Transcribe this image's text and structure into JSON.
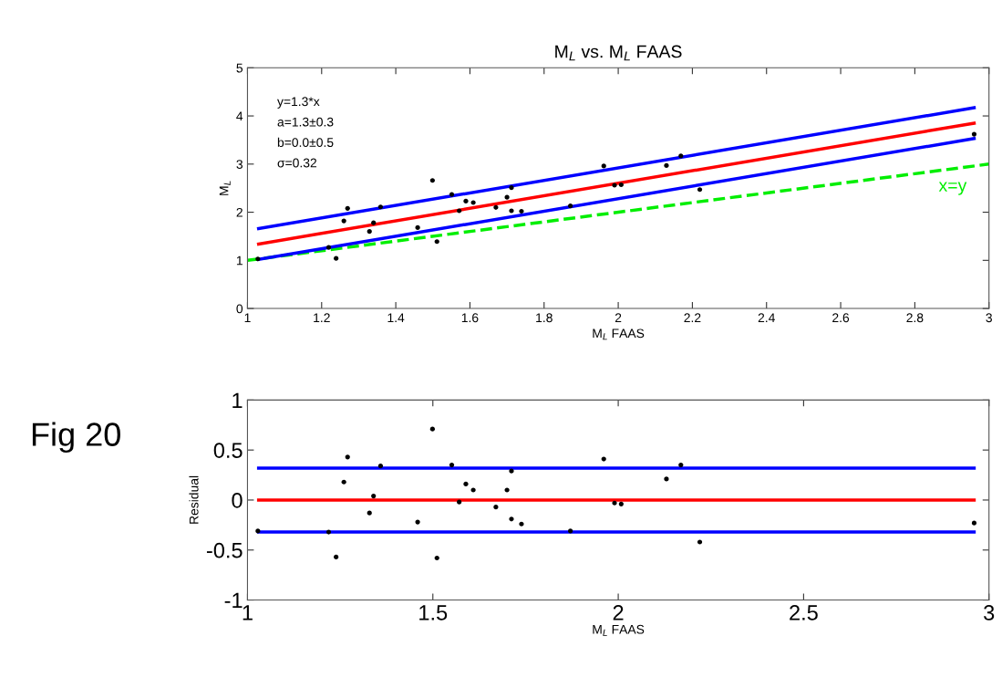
{
  "chart_data": [
    {
      "type": "scatter",
      "title": "M$_{L}$ vs. M$_{L}$ FAAS",
      "xlabel": "M$_{L}$ FAAS",
      "ylabel": "M$_{L}$",
      "xlim": [
        1,
        3
      ],
      "ylim": [
        0,
        5
      ],
      "xticks": [
        1,
        1.2,
        1.4,
        1.6,
        1.8,
        2,
        2.2,
        2.4,
        2.6,
        2.8,
        3
      ],
      "yticks": [
        0,
        1,
        2,
        3,
        4,
        5
      ],
      "annotations": [
        "y=1.3*x",
        "a=1.3±0.3",
        "b=0.0±0.5",
        "σ=0.32"
      ],
      "series": [
        {
          "type": "line",
          "name": "x=y",
          "color": "#00ee00",
          "line_style": "dashed",
          "x": [
            1,
            3
          ],
          "values": [
            1,
            3
          ]
        },
        {
          "type": "line",
          "color": "#0000ff",
          "line_style": "solid",
          "x": [
            1.03,
            2.96
          ],
          "values": [
            1.66,
            4.17
          ]
        },
        {
          "type": "line",
          "color": "#ff0000",
          "line_style": "solid",
          "x": [
            1.03,
            2.96
          ],
          "values": [
            1.34,
            3.85
          ]
        },
        {
          "type": "line",
          "color": "#0000ff",
          "line_style": "solid",
          "x": [
            1.03,
            2.96
          ],
          "values": [
            1.02,
            3.53
          ]
        },
        {
          "marker": "circle",
          "color": "#000000",
          "x": [
            1.028,
            1.219,
            1.239,
            1.26,
            1.27,
            1.329,
            1.34,
            1.359,
            1.459,
            1.499,
            1.511,
            1.551,
            1.571,
            1.589,
            1.609,
            1.67,
            1.7,
            1.712,
            1.712,
            1.739,
            1.871,
            1.961,
            1.99,
            2.008,
            2.13,
            2.169,
            2.22,
            2.96
          ],
          "values": [
            1.03,
            1.27,
            1.04,
            1.82,
            2.08,
            1.6,
            1.78,
            2.11,
            1.68,
            2.66,
            1.39,
            2.37,
            2.03,
            2.23,
            2.2,
            2.1,
            2.31,
            2.51,
            2.03,
            2.02,
            2.13,
            2.96,
            2.56,
            2.57,
            2.97,
            3.17,
            2.47,
            3.62
          ]
        }
      ]
    },
    {
      "type": "scatter",
      "xlabel": "M$_{L}$ FAAS",
      "ylabel": "Residual",
      "xlim": [
        1,
        3
      ],
      "ylim": [
        -1,
        1
      ],
      "xticks": [
        1,
        1.5,
        2,
        2.5,
        3
      ],
      "yticks": [
        -1,
        -0.5,
        0,
        0.5,
        1
      ],
      "annotations": [
        "Fig 20"
      ],
      "ref_lines": [
        {
          "axis": "y",
          "value": 0.32,
          "color": "#0000ff"
        },
        {
          "axis": "y",
          "value": 0,
          "color": "#ff0000"
        },
        {
          "axis": "y",
          "value": -0.32,
          "color": "#0000ff"
        }
      ],
      "series": [
        {
          "marker": "circle",
          "color": "#000000",
          "x": [
            1.028,
            1.219,
            1.239,
            1.26,
            1.27,
            1.329,
            1.34,
            1.359,
            1.459,
            1.499,
            1.511,
            1.551,
            1.571,
            1.589,
            1.609,
            1.67,
            1.7,
            1.712,
            1.712,
            1.739,
            1.871,
            1.961,
            1.99,
            2.008,
            2.13,
            2.169,
            2.22,
            2.96
          ],
          "values": [
            -0.31,
            -0.32,
            -0.57,
            0.18,
            0.43,
            -0.13,
            0.04,
            0.34,
            -0.22,
            0.71,
            -0.58,
            0.35,
            -0.02,
            0.16,
            0.1,
            -0.07,
            0.1,
            0.29,
            -0.19,
            -0.24,
            -0.31,
            0.41,
            -0.03,
            -0.04,
            0.21,
            0.35,
            -0.42,
            -0.23
          ]
        }
      ]
    }
  ]
}
